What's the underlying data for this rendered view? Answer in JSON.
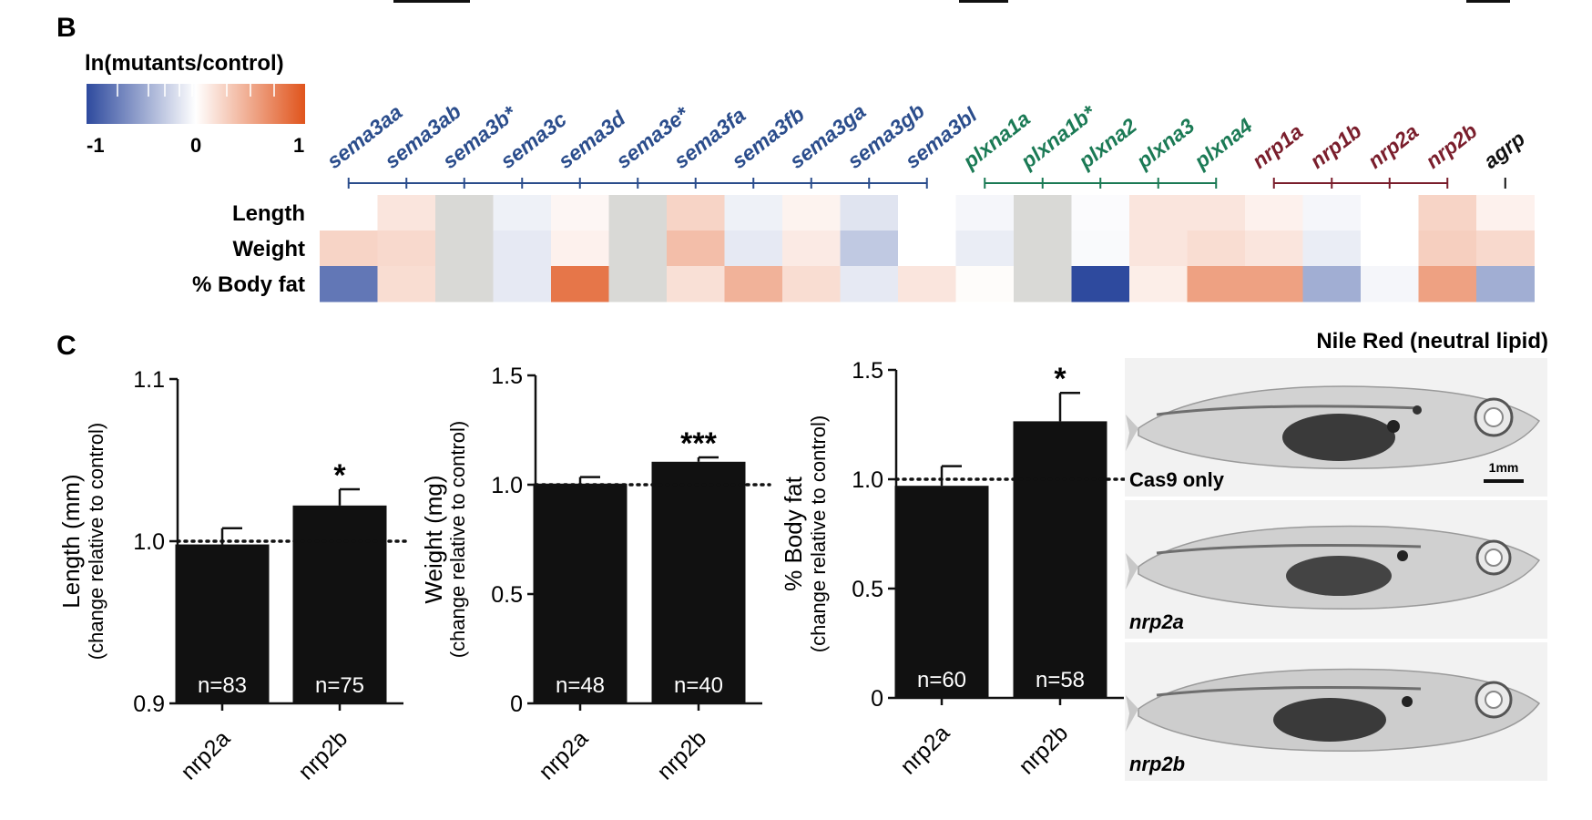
{
  "panel_b_label": "B",
  "panel_c_label": "C",
  "scale": {
    "title": "ln(mutants/control)",
    "tick_min": "-1",
    "tick_mid": "0",
    "tick_max": "1",
    "low_color": "#2e4a9e",
    "high_color": "#e0541c"
  },
  "colors": {
    "sema": "#2b4d8c",
    "plxn": "#1b7a55",
    "nrp": "#7a1e2c",
    "agrp": "#111111",
    "missing": "#d9d9d6",
    "bar": "#111111"
  },
  "gene_groups": [
    {
      "family": "sema",
      "label": "sema"
    },
    {
      "family": "plxn",
      "label": "plxn"
    },
    {
      "family": "nrp",
      "label": "nrp"
    },
    {
      "family": "agrp",
      "label": "agrp"
    }
  ],
  "chart_data": [
    {
      "type": "heatmap",
      "title": "ln(mutants/control)",
      "columns": [
        "sema3aa",
        "sema3ab",
        "sema3b*",
        "sema3c",
        "sema3d",
        "sema3e*",
        "sema3fa",
        "sema3fb",
        "sema3ga",
        "sema3gb",
        "sema3bl",
        "plxna1a",
        "plxna1b*",
        "plxna2",
        "plxna3",
        "plxna4",
        "nrp1a",
        "nrp1b",
        "nrp2a",
        "nrp2b",
        "agrp"
      ],
      "column_family": [
        "sema",
        "sema",
        "sema",
        "sema",
        "sema",
        "sema",
        "sema",
        "sema",
        "sema",
        "sema",
        "sema",
        "plxn",
        "plxn",
        "plxn",
        "plxn",
        "plxn",
        "nrp",
        "nrp",
        "nrp",
        "nrp",
        "agrp"
      ],
      "rows": [
        "Length",
        "Weight",
        "% Body fat"
      ],
      "values": [
        [
          0,
          0.15,
          null,
          -0.08,
          0.05,
          null,
          0.25,
          -0.08,
          0.07,
          -0.15,
          0,
          -0.05,
          null,
          -0.02,
          0.15,
          0.15,
          0.08,
          -0.05,
          0,
          0.25,
          0.08
        ],
        [
          0.25,
          0.22,
          null,
          -0.12,
          0.08,
          null,
          0.38,
          -0.12,
          0.12,
          -0.3,
          0,
          -0.1,
          null,
          -0.03,
          0.15,
          0.2,
          0.15,
          -0.1,
          0,
          0.28,
          0.22
        ],
        [
          -0.75,
          0.2,
          null,
          -0.12,
          0.8,
          null,
          0.18,
          0.45,
          0.2,
          -0.12,
          0.15,
          0.02,
          null,
          -1.0,
          0.1,
          0.55,
          0.55,
          -0.45,
          -0.05,
          0.55,
          -0.45
        ]
      ],
      "scale_range": [
        -1,
        1
      ]
    },
    {
      "type": "bar",
      "categories": [
        "nrp2a",
        "nrp2b"
      ],
      "values": [
        0.998,
        1.022
      ],
      "errors": [
        0.01,
        0.01
      ],
      "n_labels": [
        "n=83",
        "n=75"
      ],
      "significance": [
        "",
        "*"
      ],
      "reference_line": 1.0,
      "ylabel": "Length (mm)",
      "ylabel_sub": "(change relative to control)",
      "ylim": [
        0.9,
        1.1
      ],
      "yticks": [
        "0.9",
        "1.0",
        "1.1"
      ]
    },
    {
      "type": "bar",
      "categories": [
        "nrp2a",
        "nrp2b"
      ],
      "values": [
        1.005,
        1.105
      ],
      "errors": [
        0.03,
        0.02
      ],
      "n_labels": [
        "n=48",
        "n=40"
      ],
      "significance": [
        "",
        "***"
      ],
      "reference_line": 1.0,
      "ylabel": "Weight (mg)",
      "ylabel_sub": "(change relative to control)",
      "ylim": [
        0,
        1.5
      ],
      "yticks": [
        "0",
        "0.5",
        "1.0",
        "1.5"
      ]
    },
    {
      "type": "bar",
      "categories": [
        "nrp2a",
        "nrp2b"
      ],
      "values": [
        0.97,
        1.265
      ],
      "errors": [
        0.09,
        0.13
      ],
      "n_labels": [
        "n=60",
        "n=58"
      ],
      "significance": [
        "",
        "*"
      ],
      "reference_line": 1.0,
      "ylabel": "% Body fat",
      "ylabel_sub": "(change relative to control)",
      "ylim": [
        0,
        1.5
      ],
      "yticks": [
        "0",
        "0.5",
        "1.0",
        "1.5"
      ]
    }
  ],
  "images": {
    "title": "Nile Red (neutral lipid)",
    "panels": [
      {
        "label": "Cas9 only",
        "italic": false
      },
      {
        "label": "nrp2a",
        "italic": true
      },
      {
        "label": "nrp2b",
        "italic": true
      }
    ],
    "scale_bar_label": "1mm"
  }
}
